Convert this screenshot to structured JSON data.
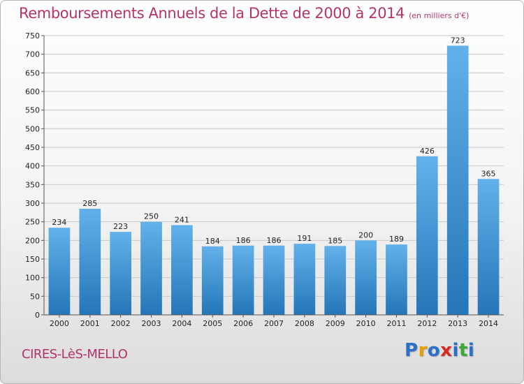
{
  "header": {
    "title": "Remboursements Annuels de la Dette de 2000 à 2014",
    "subtitle": "(en milliers d'€)"
  },
  "footer": {
    "commune": "CIRES-LèS-MELLO",
    "logo": [
      "P",
      "r",
      "o",
      "x",
      "i",
      "t",
      "i"
    ],
    "logo_colors": [
      "#2a6fc9",
      "#e8a000",
      "#2a6fc9",
      "#d62b1e",
      "#2a6fc9",
      "#3aaa35",
      "#2a6fc9"
    ]
  },
  "colors": {
    "bar_light": "#63b1ea",
    "bar_dark": "#2476b8",
    "grid": "#c8c8c8",
    "title": "#b3336b"
  },
  "chart_data": {
    "type": "bar",
    "title": "Remboursements Annuels de la Dette de 2000 à 2014",
    "subtitle": "(en milliers d'€)",
    "categories": [
      "2000",
      "2001",
      "2002",
      "2003",
      "2004",
      "2005",
      "2006",
      "2007",
      "2008",
      "2009",
      "2010",
      "2011",
      "2012",
      "2013",
      "2014"
    ],
    "values": [
      234,
      285,
      223,
      250,
      241,
      184,
      186,
      186,
      191,
      185,
      200,
      189,
      426,
      723,
      365
    ],
    "ylim": [
      0,
      750
    ],
    "yticks": [
      0,
      50,
      100,
      150,
      200,
      250,
      300,
      350,
      400,
      450,
      500,
      550,
      600,
      650,
      700,
      750
    ],
    "grid": true,
    "legend": "none"
  }
}
